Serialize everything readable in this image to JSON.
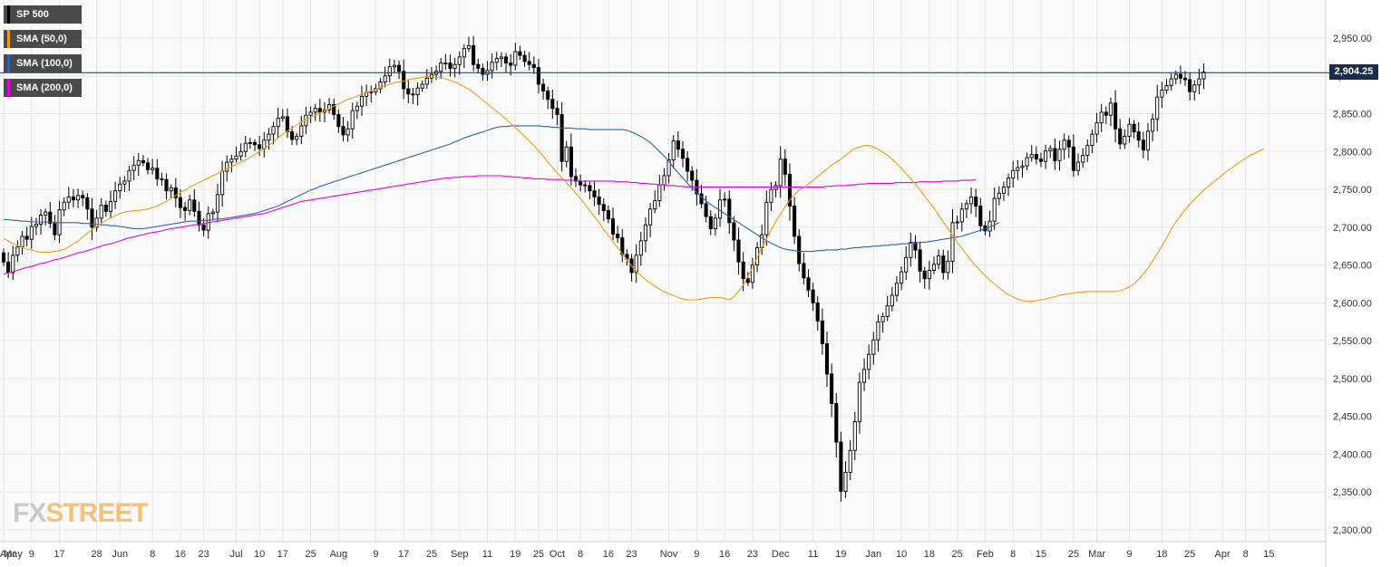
{
  "legend": [
    {
      "label": "SP 500",
      "color": "#000000"
    },
    {
      "label": "SMA (50,0)",
      "color": "#f39c12"
    },
    {
      "label": "SMA (100,0)",
      "color": "#2d63b0"
    },
    {
      "label": "SMA (200,0)",
      "color": "#e600e6"
    }
  ],
  "last_price": "2,904.25",
  "watermark": {
    "part1": "FX",
    "part2": "STREET"
  },
  "colors": {
    "sma50": "#f39c12",
    "sma100": "#2d63b0",
    "sma200": "#e600e6",
    "candle": "#000000",
    "price_line": "#1c2b48",
    "grid": "#e6e6e6"
  },
  "chart_data": {
    "type": "candlestick",
    "y_ticks": [
      "2,950.00",
      "2,900.00",
      "2,850.00",
      "2,800.00",
      "2,750.00",
      "2,700.00",
      "2,650.00",
      "2,600.00",
      "2,550.00",
      "2,500.00",
      "2,450.00",
      "2,400.00",
      "2,350.00",
      "2,300.00"
    ],
    "y_tick_values": [
      2950,
      2900,
      2850,
      2800,
      2750,
      2700,
      2650,
      2600,
      2550,
      2500,
      2450,
      2400,
      2350,
      2300
    ],
    "ylim": [
      2285,
      3000
    ],
    "x_ticks": [
      "Apr",
      "May",
      "9",
      "17",
      "28",
      "Jun",
      "8",
      "16",
      "23",
      "Jul",
      "10",
      "17",
      "25",
      "Aug",
      "9",
      "17",
      "25",
      "Sep",
      "11",
      "19",
      "25",
      "Oct",
      "8",
      "16",
      "23",
      "Nov",
      "9",
      "16",
      "23",
      "Dec",
      "11",
      "19",
      "Jan",
      "10",
      "18",
      "25",
      "Feb",
      "8",
      "15",
      "25",
      "Mar",
      "9",
      "18",
      "25",
      "Apr",
      "8",
      "15"
    ],
    "x_tick_index": [
      -5,
      0,
      6,
      12,
      20,
      25,
      32,
      38,
      43,
      50,
      55,
      60,
      66,
      72,
      80,
      86,
      92,
      98,
      104,
      110,
      115,
      119,
      124,
      130,
      135,
      143,
      149,
      155,
      161,
      167,
      174,
      180,
      187,
      193,
      199,
      205,
      211,
      217,
      223,
      230,
      235,
      242,
      249,
      255,
      262,
      267,
      272
    ],
    "series": {
      "candles_close": [
        2654,
        2640,
        2663,
        2674,
        2688,
        2684,
        2701,
        2704,
        2716,
        2720,
        2705,
        2690,
        2723,
        2733,
        2740,
        2736,
        2742,
        2739,
        2724,
        2700,
        2712,
        2729,
        2721,
        2734,
        2748,
        2757,
        2761,
        2775,
        2782,
        2788,
        2785,
        2776,
        2778,
        2764,
        2763,
        2748,
        2752,
        2739,
        2726,
        2722,
        2736,
        2721,
        2703,
        2696,
        2718,
        2720,
        2743,
        2774,
        2786,
        2790,
        2794,
        2800,
        2811,
        2812,
        2809,
        2804,
        2815,
        2823,
        2833,
        2844,
        2846,
        2826,
        2816,
        2820,
        2834,
        2848,
        2852,
        2857,
        2852,
        2855,
        2862,
        2849,
        2833,
        2822,
        2830,
        2854,
        2860,
        2873,
        2878,
        2879,
        2883,
        2892,
        2900,
        2912,
        2914,
        2906,
        2883,
        2876,
        2875,
        2884,
        2889,
        2897,
        2902,
        2906,
        2917,
        2917,
        2910,
        2915,
        2925,
        2936,
        2940,
        2915,
        2910,
        2902,
        2907,
        2918,
        2923,
        2925,
        2917,
        2914,
        2932,
        2927,
        2919,
        2915,
        2911,
        2889,
        2880,
        2869,
        2857,
        2849,
        2787,
        2806,
        2767,
        2761,
        2756,
        2755,
        2748,
        2740,
        2730,
        2722,
        2711,
        2691,
        2686,
        2664,
        2658,
        2640,
        2663,
        2682,
        2703,
        2724,
        2735,
        2756,
        2768,
        2789,
        2814,
        2803,
        2791,
        2774,
        2762,
        2744,
        2731,
        2714,
        2698,
        2712,
        2736,
        2737,
        2706,
        2683,
        2654,
        2632,
        2627,
        2650,
        2673,
        2690,
        2733,
        2750,
        2755,
        2790,
        2770,
        2728,
        2688,
        2652,
        2633,
        2617,
        2600,
        2576,
        2546,
        2506,
        2467,
        2416,
        2351,
        2376,
        2405,
        2443,
        2495,
        2512,
        2532,
        2551,
        2575,
        2582,
        2596,
        2610,
        2626,
        2641,
        2660,
        2680,
        2670,
        2642,
        2632,
        2643,
        2651,
        2662,
        2640,
        2655,
        2706,
        2707,
        2724,
        2731,
        2740,
        2728,
        2702,
        2695,
        2708,
        2738,
        2745,
        2753,
        2765,
        2775,
        2779,
        2781,
        2792,
        2796,
        2790,
        2787,
        2801,
        2804,
        2788,
        2803,
        2815,
        2806,
        2775,
        2786,
        2795,
        2808,
        2823,
        2838,
        2852,
        2848,
        2864,
        2830,
        2810,
        2820,
        2836,
        2826,
        2815,
        2802,
        2827,
        2843,
        2872,
        2881,
        2887,
        2896,
        2902,
        2897,
        2895,
        2879,
        2888,
        2896,
        2905
      ],
      "sma50": [
        2685,
        2682,
        2678,
        2676,
        2673,
        2671,
        2670,
        2668,
        2667,
        2667,
        2667,
        2668,
        2669,
        2671,
        2674,
        2678,
        2682,
        2687,
        2692,
        2697,
        2701,
        2705,
        2709,
        2712,
        2715,
        2718,
        2720,
        2721,
        2722,
        2722,
        2723,
        2724,
        2726,
        2728,
        2731,
        2734,
        2738,
        2742,
        2746,
        2749,
        2753,
        2756,
        2759,
        2762,
        2765,
        2768,
        2771,
        2774,
        2777,
        2780,
        2783,
        2786,
        2789,
        2792,
        2796,
        2800,
        2804,
        2808,
        2813,
        2818,
        2823,
        2827,
        2831,
        2835,
        2839,
        2842,
        2845,
        2848,
        2851,
        2854,
        2857,
        2860,
        2863,
        2866,
        2869,
        2871,
        2873,
        2876,
        2878,
        2880,
        2882,
        2885,
        2887,
        2889,
        2891,
        2892,
        2893,
        2895,
        2896,
        2897,
        2898,
        2899,
        2899,
        2898,
        2898,
        2896,
        2894,
        2892,
        2889,
        2886,
        2882,
        2878,
        2873,
        2868,
        2863,
        2858,
        2853,
        2848,
        2843,
        2837,
        2832,
        2826,
        2820,
        2814,
        2808,
        2801,
        2794,
        2786,
        2779,
        2772,
        2765,
        2759,
        2752,
        2745,
        2738,
        2730,
        2722,
        2714,
        2706,
        2697,
        2689,
        2681,
        2673,
        2665,
        2657,
        2649,
        2642,
        2636,
        2631,
        2626,
        2622,
        2618,
        2615,
        2612,
        2610,
        2607,
        2605,
        2604,
        2604,
        2604,
        2605,
        2606,
        2607,
        2607,
        2607,
        2606,
        2604,
        2608,
        2615,
        2624,
        2635,
        2647,
        2660,
        2673,
        2684,
        2696,
        2708,
        2717,
        2727,
        2736,
        2743,
        2749,
        2752,
        2757,
        2762,
        2767,
        2772,
        2777,
        2782,
        2786,
        2790,
        2795,
        2800,
        2804,
        2806,
        2808,
        2808,
        2806,
        2803,
        2799,
        2795,
        2790,
        2784,
        2778,
        2771,
        2764,
        2757,
        2749,
        2741,
        2733,
        2725,
        2716,
        2707,
        2698,
        2689,
        2680,
        2672,
        2664,
        2656,
        2649,
        2642,
        2636,
        2630,
        2625,
        2620,
        2615,
        2611,
        2608,
        2605,
        2603,
        2602,
        2602,
        2603,
        2604,
        2605,
        2607,
        2608,
        2610,
        2611,
        2612,
        2613,
        2614,
        2614,
        2615,
        2615,
        2615,
        2615,
        2615,
        2615,
        2615,
        2616,
        2618,
        2621,
        2625,
        2631,
        2638,
        2646,
        2655,
        2665,
        2675,
        2686,
        2697,
        2707,
        2715,
        2723,
        2730,
        2737,
        2743,
        2749,
        2754,
        2759,
        2764,
        2769,
        2774,
        2778,
        2783,
        2787,
        2791,
        2795,
        2798,
        2801,
        2804
      ],
      "sma100": [
        2710,
        2710,
        2709,
        2709,
        2708,
        2708,
        2707,
        2707,
        2707,
        2707,
        2707,
        2706,
        2706,
        2706,
        2706,
        2706,
        2706,
        2705,
        2705,
        2704,
        2704,
        2703,
        2703,
        2702,
        2702,
        2701,
        2700,
        2699,
        2698,
        2698,
        2698,
        2699,
        2700,
        2701,
        2702,
        2703,
        2704,
        2705,
        2706,
        2707,
        2708,
        2708,
        2708,
        2709,
        2709,
        2710,
        2711,
        2711,
        2712,
        2713,
        2714,
        2715,
        2716,
        2717,
        2718,
        2720,
        2722,
        2724,
        2726,
        2728,
        2731,
        2734,
        2737,
        2740,
        2743,
        2746,
        2749,
        2751,
        2754,
        2756,
        2758,
        2760,
        2762,
        2764,
        2766,
        2768,
        2770,
        2772,
        2774,
        2776,
        2778,
        2780,
        2782,
        2784,
        2786,
        2788,
        2790,
        2792,
        2794,
        2796,
        2798,
        2800,
        2802,
        2804,
        2806,
        2808,
        2810,
        2813,
        2815,
        2818,
        2820,
        2822,
        2824,
        2826,
        2828,
        2830,
        2832,
        2833,
        2833,
        2834,
        2834,
        2834,
        2834,
        2834,
        2834,
        2834,
        2833,
        2833,
        2832,
        2832,
        2831,
        2831,
        2831,
        2830,
        2830,
        2830,
        2829,
        2829,
        2829,
        2829,
        2829,
        2829,
        2829,
        2829,
        2828,
        2826,
        2823,
        2820,
        2816,
        2812,
        2806,
        2800,
        2794,
        2787,
        2779,
        2772,
        2765,
        2758,
        2752,
        2746,
        2740,
        2735,
        2730,
        2726,
        2722,
        2718,
        2714,
        2710,
        2706,
        2702,
        2698,
        2694,
        2690,
        2686,
        2682,
        2679,
        2676,
        2673,
        2671,
        2670,
        2669,
        2668,
        2668,
        2668,
        2668,
        2669,
        2669,
        2670,
        2670,
        2670,
        2671,
        2671,
        2672,
        2673,
        2673,
        2674,
        2674,
        2675,
        2675,
        2676,
        2676,
        2677,
        2677,
        2678,
        2678,
        2679,
        2679,
        2680,
        2680,
        2681,
        2682,
        2683,
        2684,
        2685,
        2686,
        2687,
        2688,
        2690,
        2692,
        2694,
        2696,
        2698,
        2700,
        2703,
        2706
      ],
      "sma200": [
        2638,
        2640,
        2641,
        2643,
        2645,
        2647,
        2648,
        2650,
        2652,
        2653,
        2655,
        2657,
        2658,
        2660,
        2662,
        2664,
        2666,
        2667,
        2669,
        2671,
        2673,
        2675,
        2677,
        2678,
        2680,
        2682,
        2684,
        2686,
        2687,
        2689,
        2690,
        2692,
        2693,
        2694,
        2695,
        2697,
        2698,
        2699,
        2700,
        2701,
        2702,
        2703,
        2704,
        2705,
        2706,
        2707,
        2708,
        2709,
        2710,
        2711,
        2712,
        2713,
        2714,
        2715,
        2716,
        2717,
        2718,
        2720,
        2722,
        2724,
        2726,
        2728,
        2730,
        2732,
        2734,
        2735,
        2736,
        2737,
        2738,
        2739,
        2740,
        2741,
        2742,
        2743,
        2744,
        2745,
        2746,
        2747,
        2748,
        2749,
        2750,
        2751,
        2752,
        2753,
        2754,
        2755,
        2756,
        2757,
        2758,
        2759,
        2760,
        2761,
        2762,
        2763,
        2764,
        2765,
        2765,
        2766,
        2766,
        2767,
        2767,
        2767,
        2768,
        2768,
        2768,
        2768,
        2768,
        2768,
        2767,
        2767,
        2766,
        2766,
        2765,
        2765,
        2764,
        2764,
        2764,
        2763,
        2763,
        2763,
        2763,
        2762,
        2762,
        2762,
        2761,
        2761,
        2761,
        2761,
        2761,
        2761,
        2761,
        2761,
        2760,
        2760,
        2760,
        2759,
        2759,
        2758,
        2758,
        2757,
        2757,
        2756,
        2756,
        2755,
        2755,
        2754,
        2754,
        2753,
        2753,
        2753,
        2753,
        2753,
        2753,
        2753,
        2753,
        2753,
        2753,
        2753,
        2753,
        2753,
        2753,
        2753,
        2753,
        2753,
        2753,
        2753,
        2753,
        2753,
        2753,
        2753,
        2753,
        2753,
        2753,
        2753,
        2753,
        2753,
        2753,
        2754,
        2754,
        2755,
        2755,
        2755,
        2756,
        2756,
        2757,
        2757,
        2758,
        2758,
        2758,
        2758,
        2758,
        2758,
        2759,
        2759,
        2759,
        2759,
        2759,
        2760,
        2760,
        2760,
        2760,
        2760,
        2761,
        2761,
        2761,
        2761,
        2762,
        2762,
        2762,
        2763
      ]
    }
  }
}
